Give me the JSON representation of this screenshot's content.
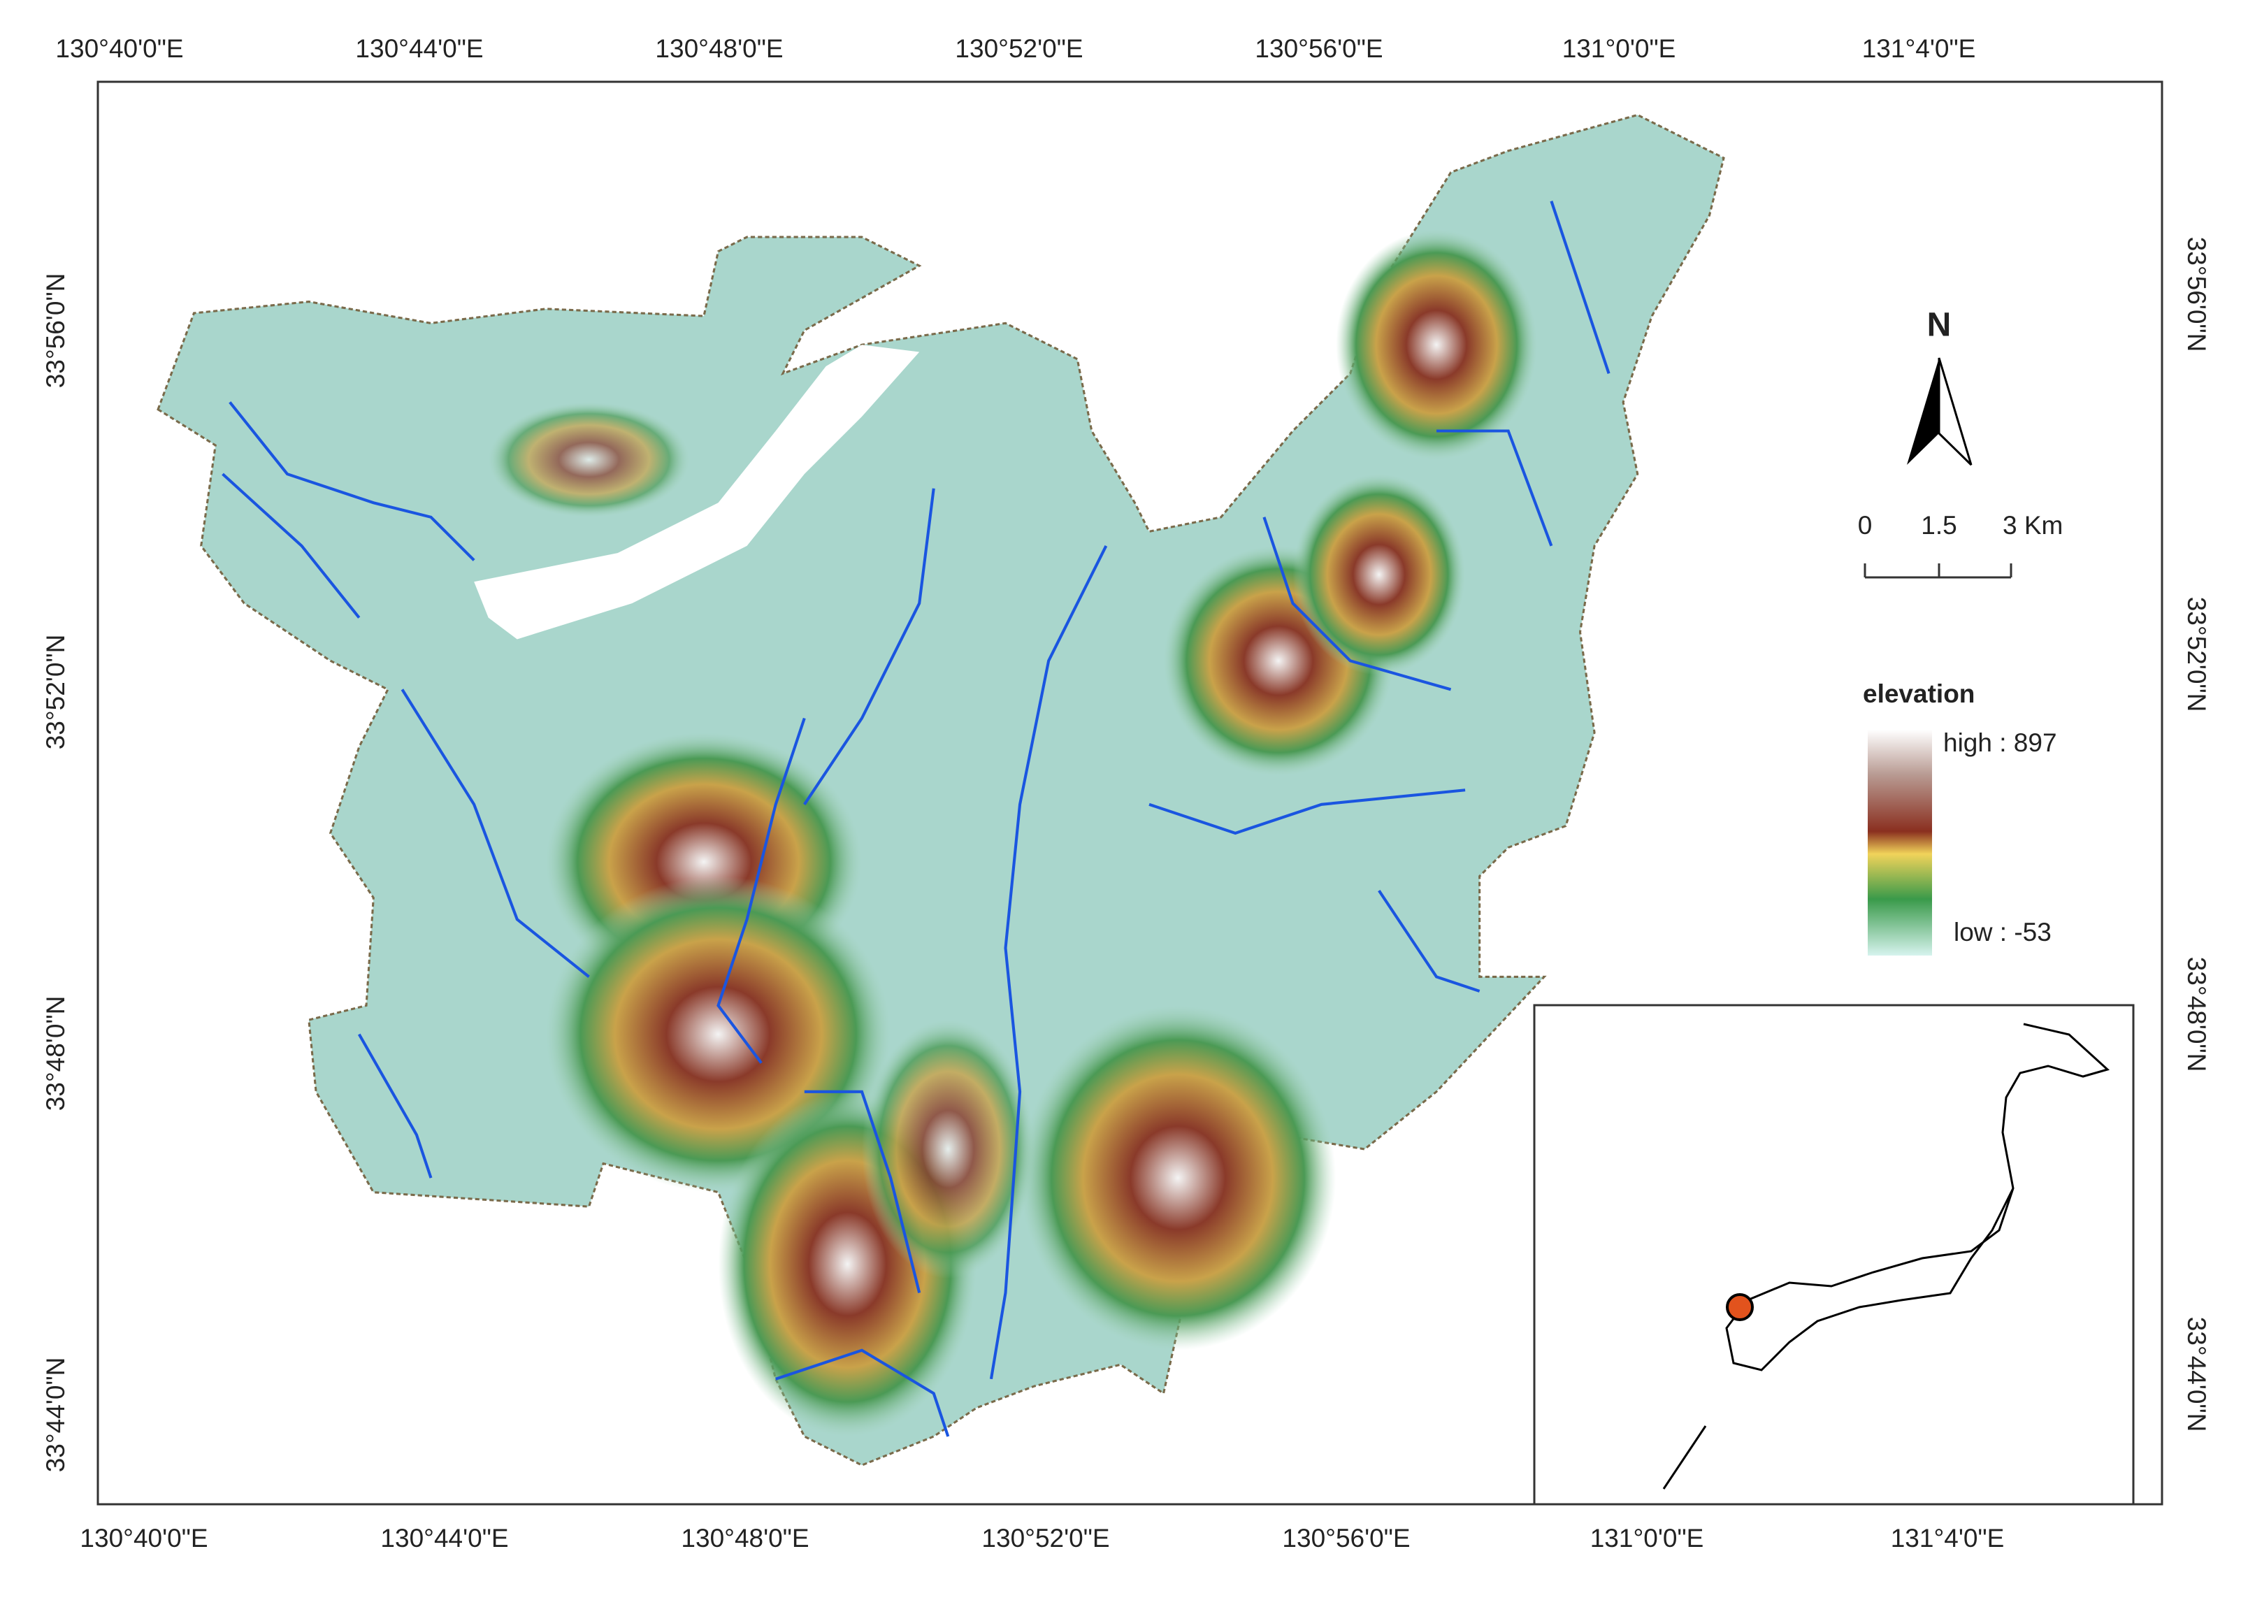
{
  "map": {
    "top_labels": [
      "130°40'0\"E",
      "130°44'0\"E",
      "130°48'0\"E",
      "130°52'0\"E",
      "130°56'0\"E",
      "131°0'0\"E",
      "131°4'0\"E"
    ],
    "bottom_labels": [
      "130°40'0\"E",
      "130°44'0\"E",
      "130°48'0\"E",
      "130°52'0\"E",
      "130°56'0\"E",
      "131°0'0\"E",
      "131°4'0\"E"
    ],
    "left_labels": [
      "33°56'0\"N",
      "33°52'0\"N",
      "33°48'0\"N",
      "33°44'0\"N"
    ],
    "right_labels": [
      "33°56'0\"N",
      "33°52'0\"N",
      "33°48'0\"N",
      "33°44'0\"N"
    ],
    "north": "N",
    "scale_bar": {
      "labels": [
        "0",
        "1.5",
        "3 Km"
      ]
    },
    "legend": {
      "title": "elevation",
      "high": "high : 897",
      "low": "low : -53"
    }
  }
}
